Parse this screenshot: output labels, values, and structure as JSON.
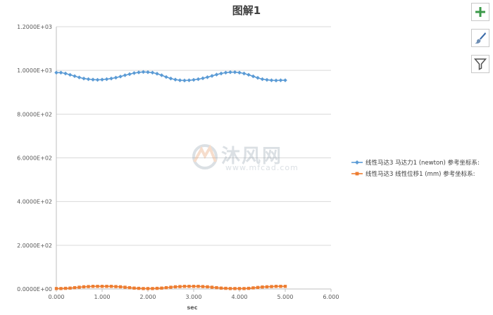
{
  "chart_data": {
    "type": "scatter",
    "title": "图解1",
    "xlabel": "sec",
    "ylabel": "",
    "xlim": [
      0,
      6
    ],
    "ylim": [
      0,
      1200
    ],
    "x_ticks": [
      "0.000",
      "1.000",
      "2.000",
      "3.000",
      "4.000",
      "5.000",
      "6.000"
    ],
    "y_ticks": [
      "0.0000E+00",
      "2.0000E+02",
      "4.0000E+02",
      "6.0000E+02",
      "8.0000E+02",
      "1.0000E+03",
      "1.2000E+03"
    ],
    "grid": true,
    "legend_position": "right",
    "series": [
      {
        "name": "线性马达3 马达力1 (newton) 参考坐标系:",
        "color": "#5b9bd5",
        "marker": "diamond",
        "x": [
          0.0,
          0.1,
          0.2,
          0.3,
          0.4,
          0.5,
          0.6,
          0.7,
          0.8,
          0.9,
          1.0,
          1.1,
          1.2,
          1.3,
          1.4,
          1.5,
          1.6,
          1.7,
          1.8,
          1.9,
          2.0,
          2.1,
          2.2,
          2.3,
          2.4,
          2.5,
          2.6,
          2.7,
          2.8,
          2.9,
          3.0,
          3.1,
          3.2,
          3.3,
          3.4,
          3.5,
          3.6,
          3.7,
          3.8,
          3.9,
          4.0,
          4.1,
          4.2,
          4.3,
          4.4,
          4.5,
          4.6,
          4.7,
          4.8,
          4.9,
          5.0
        ],
        "y": [
          990,
          990,
          986,
          980,
          974,
          968,
          963,
          960,
          958,
          957,
          958,
          960,
          963,
          967,
          972,
          978,
          983,
          988,
          991,
          993,
          992,
          990,
          985,
          978,
          970,
          963,
          958,
          955,
          954,
          955,
          957,
          960,
          964,
          969,
          975,
          981,
          986,
          990,
          992,
          992,
          990,
          986,
          980,
          973,
          966,
          960,
          957,
          955,
          954,
          955,
          955
        ]
      },
      {
        "name": "线性马达3 线性位移1 (mm) 参考坐标系:",
        "color": "#ed7d31",
        "marker": "square",
        "x": [
          0.0,
          0.1,
          0.2,
          0.3,
          0.4,
          0.5,
          0.6,
          0.7,
          0.8,
          0.9,
          1.0,
          1.1,
          1.2,
          1.3,
          1.4,
          1.5,
          1.6,
          1.7,
          1.8,
          1.9,
          2.0,
          2.1,
          2.2,
          2.3,
          2.4,
          2.5,
          2.6,
          2.7,
          2.8,
          2.9,
          3.0,
          3.1,
          3.2,
          3.3,
          3.4,
          3.5,
          3.6,
          3.7,
          3.8,
          3.9,
          4.0,
          4.1,
          4.2,
          4.3,
          4.4,
          4.5,
          4.6,
          4.7,
          4.8,
          4.9,
          5.0
        ],
        "y": [
          2,
          2,
          3,
          4,
          6,
          8,
          10,
          11,
          12,
          12,
          12,
          12,
          12,
          11,
          10,
          8,
          6,
          4,
          3,
          2,
          2,
          2,
          3,
          4,
          6,
          8,
          10,
          11,
          12,
          12,
          12,
          12,
          11,
          10,
          8,
          6,
          4,
          3,
          2,
          2,
          2,
          2,
          3,
          5,
          7,
          9,
          10,
          11,
          12,
          12,
          12
        ]
      }
    ]
  },
  "toolbar": {
    "add_icon": "plus-icon",
    "style_icon": "brush-icon",
    "filter_icon": "filter-icon"
  },
  "watermark": {
    "main": "沐风网",
    "sub": "www.mfcad.com"
  }
}
